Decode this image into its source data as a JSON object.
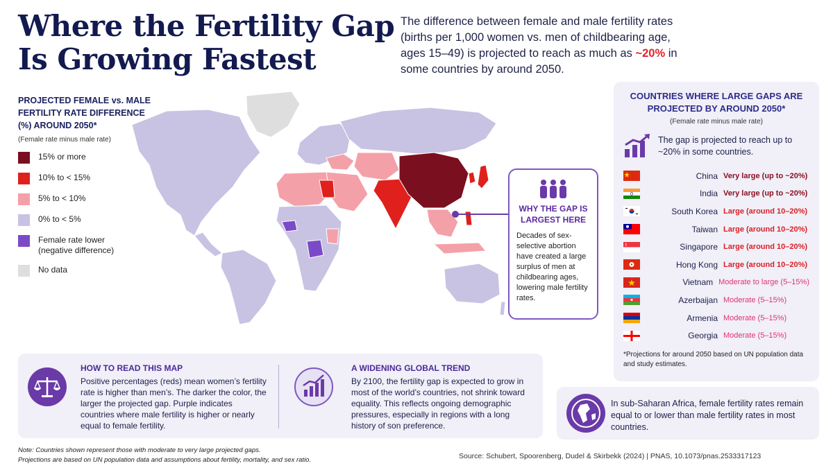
{
  "title": {
    "line1": "Where the Fertility Gap",
    "line2": "Is Growing Fastest"
  },
  "intro": {
    "text_before": "The difference between female and male fertility rates (births per 1,000 women vs. men of childbearing age, ages 15–49) is projected to reach as much as ",
    "highlight": "~20%",
    "text_after": " in some countries by around 2050."
  },
  "legend": {
    "title": "PROJECTED FEMALE vs. MALE FERTILITY RATE DIFFERENCE (%) AROUND 2050*",
    "subtitle": "(Female rate minus male rate)",
    "items": [
      {
        "label": "15% or more",
        "color": "#7a0f1f"
      },
      {
        "label": "10% to < 15%",
        "color": "#e0201d"
      },
      {
        "label": "5% to < 10%",
        "color": "#f4a0a8"
      },
      {
        "label": "0% to < 5%",
        "color": "#c8c3e2"
      },
      {
        "label": "Female rate lower (negative difference)",
        "color": "#7b4bc7"
      },
      {
        "label": "No data",
        "color": "#dedede"
      }
    ]
  },
  "callout": {
    "title": "WHY THE GAP IS LARGEST HERE",
    "body": "Decades of sex-selective abortion have created a large surplus of men at childbearing ages, lowering male fertility rates."
  },
  "right_panel": {
    "title": "COUNTRIES WHERE LARGE GAPS ARE PROJECTED BY AROUND 2050*",
    "subtitle": "(Female rate minus male rate)",
    "gap_text": "The gap is projected to reach up to ~20% in some countries.",
    "countries": [
      {
        "name": "China",
        "gap": "Very large (up to ~20%)",
        "color": "#8a1022",
        "flag": "china"
      },
      {
        "name": "India",
        "gap": "Very large (up to ~20%)",
        "color": "#8a1022",
        "flag": "india"
      },
      {
        "name": "South Korea",
        "gap": "Large (around 10–20%)",
        "color": "#d91f26",
        "flag": "korea"
      },
      {
        "name": "Taiwan",
        "gap": "Large (around 10–20%)",
        "color": "#d91f26",
        "flag": "taiwan"
      },
      {
        "name": "Singapore",
        "gap": "Large (around 10–20%)",
        "color": "#d91f26",
        "flag": "singapore"
      },
      {
        "name": "Hong Kong",
        "gap": "Large (around 10–20%)",
        "color": "#d91f26",
        "flag": "hongkong"
      },
      {
        "name": "Vietnam",
        "gap": "Moderate to large (5–15%)",
        "color": "#e0327a",
        "flag": "vietnam"
      },
      {
        "name": "Azerbaijan",
        "gap": "Moderate (5–15%)",
        "color": "#e0327a",
        "flag": "azerbaijan"
      },
      {
        "name": "Armenia",
        "gap": "Moderate (5–15%)",
        "color": "#e0327a",
        "flag": "armenia"
      },
      {
        "name": "Georgia",
        "gap": "Moderate (5–15%)",
        "color": "#e0327a",
        "flag": "georgia"
      }
    ],
    "note": "*Projections for around 2050 based on UN population data and study estimates."
  },
  "how_to_read": {
    "heading": "HOW TO READ THIS MAP",
    "text": "Positive percentages (reds) mean women’s fertility rate is higher than men’s. The darker the color, the larger the projected gap. Purple indicates countries where male fertility is higher or nearly equal to female fertility."
  },
  "trend": {
    "heading": "A WIDENING GLOBAL TREND",
    "text": "By 2100, the fertility gap is expected to grow in most of the world’s countries, not shrink toward equality. This reflects ongoing demographic pressures, especially in regions with a long history of son preference."
  },
  "africa": {
    "text": "In sub-Saharan Africa, female fertility rates remain equal to or lower than male fertility rates in most countries."
  },
  "footer": {
    "note1": "Note: Countries shown represent those with moderate to very large projected gaps.",
    "note2": "Projections are based on UN population data and assumptions about fertility, mortality, and sex ratio.",
    "source": "Source: Schubert, Spoorenberg, Dudel & Skirbekk (2024)   |   PNAS, 10.1073/pnas.2533317123"
  }
}
